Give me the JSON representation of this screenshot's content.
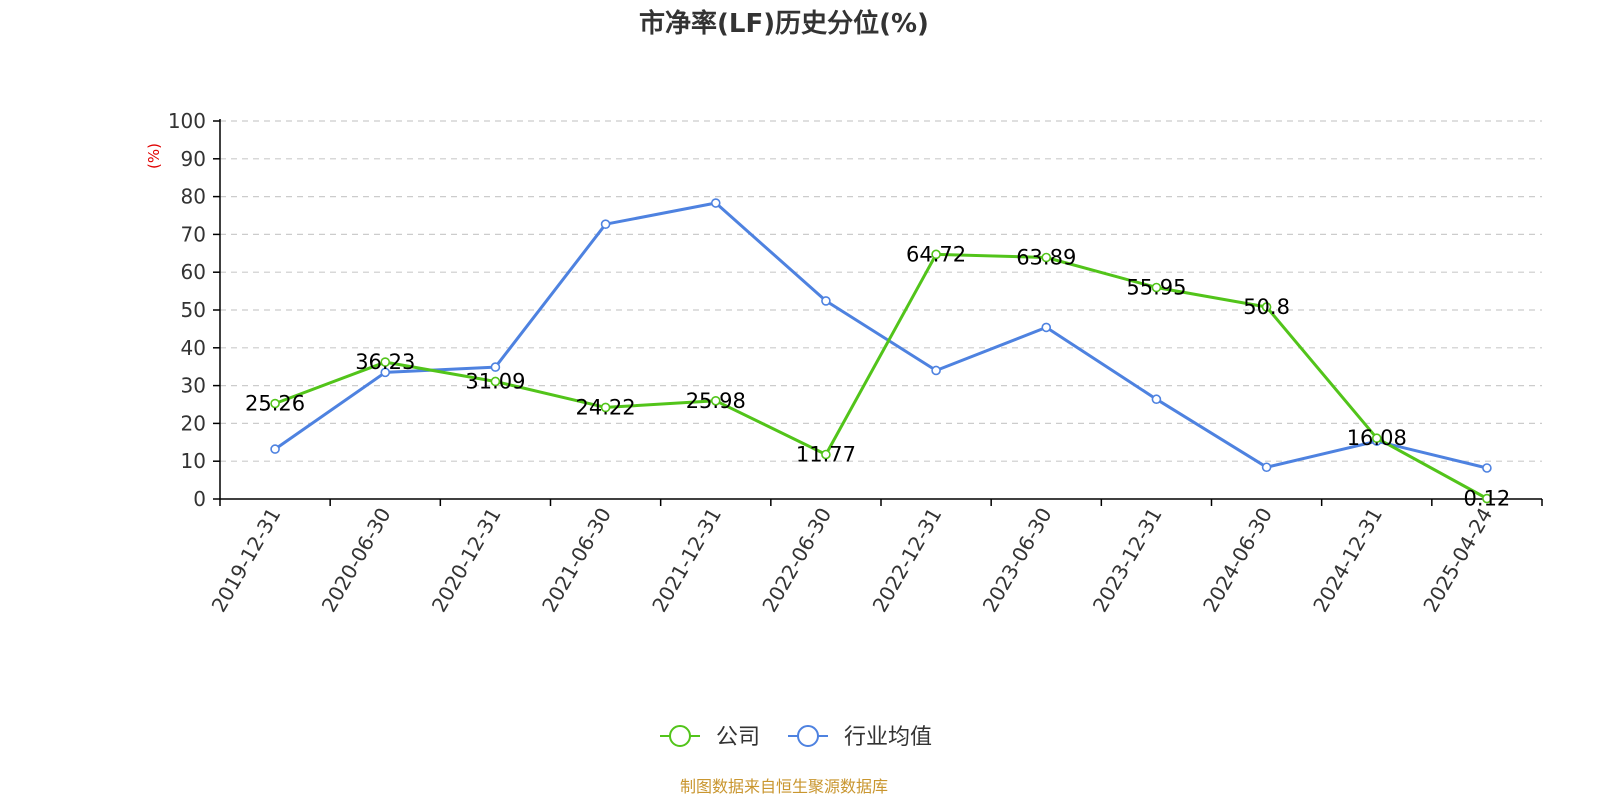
{
  "chart_data": {
    "type": "line",
    "title": "市净率(LF)历史分位(%)",
    "ylabel": "(%)",
    "ylim": [
      0,
      100
    ],
    "yticks": [
      "0",
      "10",
      "20",
      "30",
      "40",
      "50",
      "60",
      "70",
      "80",
      "90",
      "100"
    ],
    "categories": [
      "2019-12-31",
      "2020-06-30",
      "2020-12-31",
      "2021-06-30",
      "2021-12-31",
      "2022-06-30",
      "2022-12-31",
      "2023-06-30",
      "2023-12-31",
      "2024-06-30",
      "2024-12-31",
      "2025-04-24"
    ],
    "grid": true,
    "legend_position": "bottom",
    "series": [
      {
        "name": "公司",
        "color": "#52c41a",
        "values": [
          25.26,
          36.23,
          31.09,
          24.22,
          25.98,
          11.77,
          64.72,
          63.89,
          55.95,
          50.8,
          16.08,
          0.12
        ],
        "labels": [
          "25.26",
          "36.23",
          "31.09",
          "24.22",
          "25.98",
          "11.77",
          "64.72",
          "63.89",
          "55.95",
          "50.8",
          "16.08",
          "0.12"
        ]
      },
      {
        "name": "行业均值",
        "color": "#4e82e0",
        "values": [
          13.2,
          33.5,
          34.9,
          72.7,
          78.3,
          52.4,
          34.0,
          45.4,
          26.4,
          8.4,
          15.3,
          8.2
        ]
      }
    ]
  },
  "source_text": "制图数据来自恒生聚源数据库",
  "colors": {
    "source": "#c9962f",
    "unit_label": "#e00000",
    "text": "#333333"
  }
}
